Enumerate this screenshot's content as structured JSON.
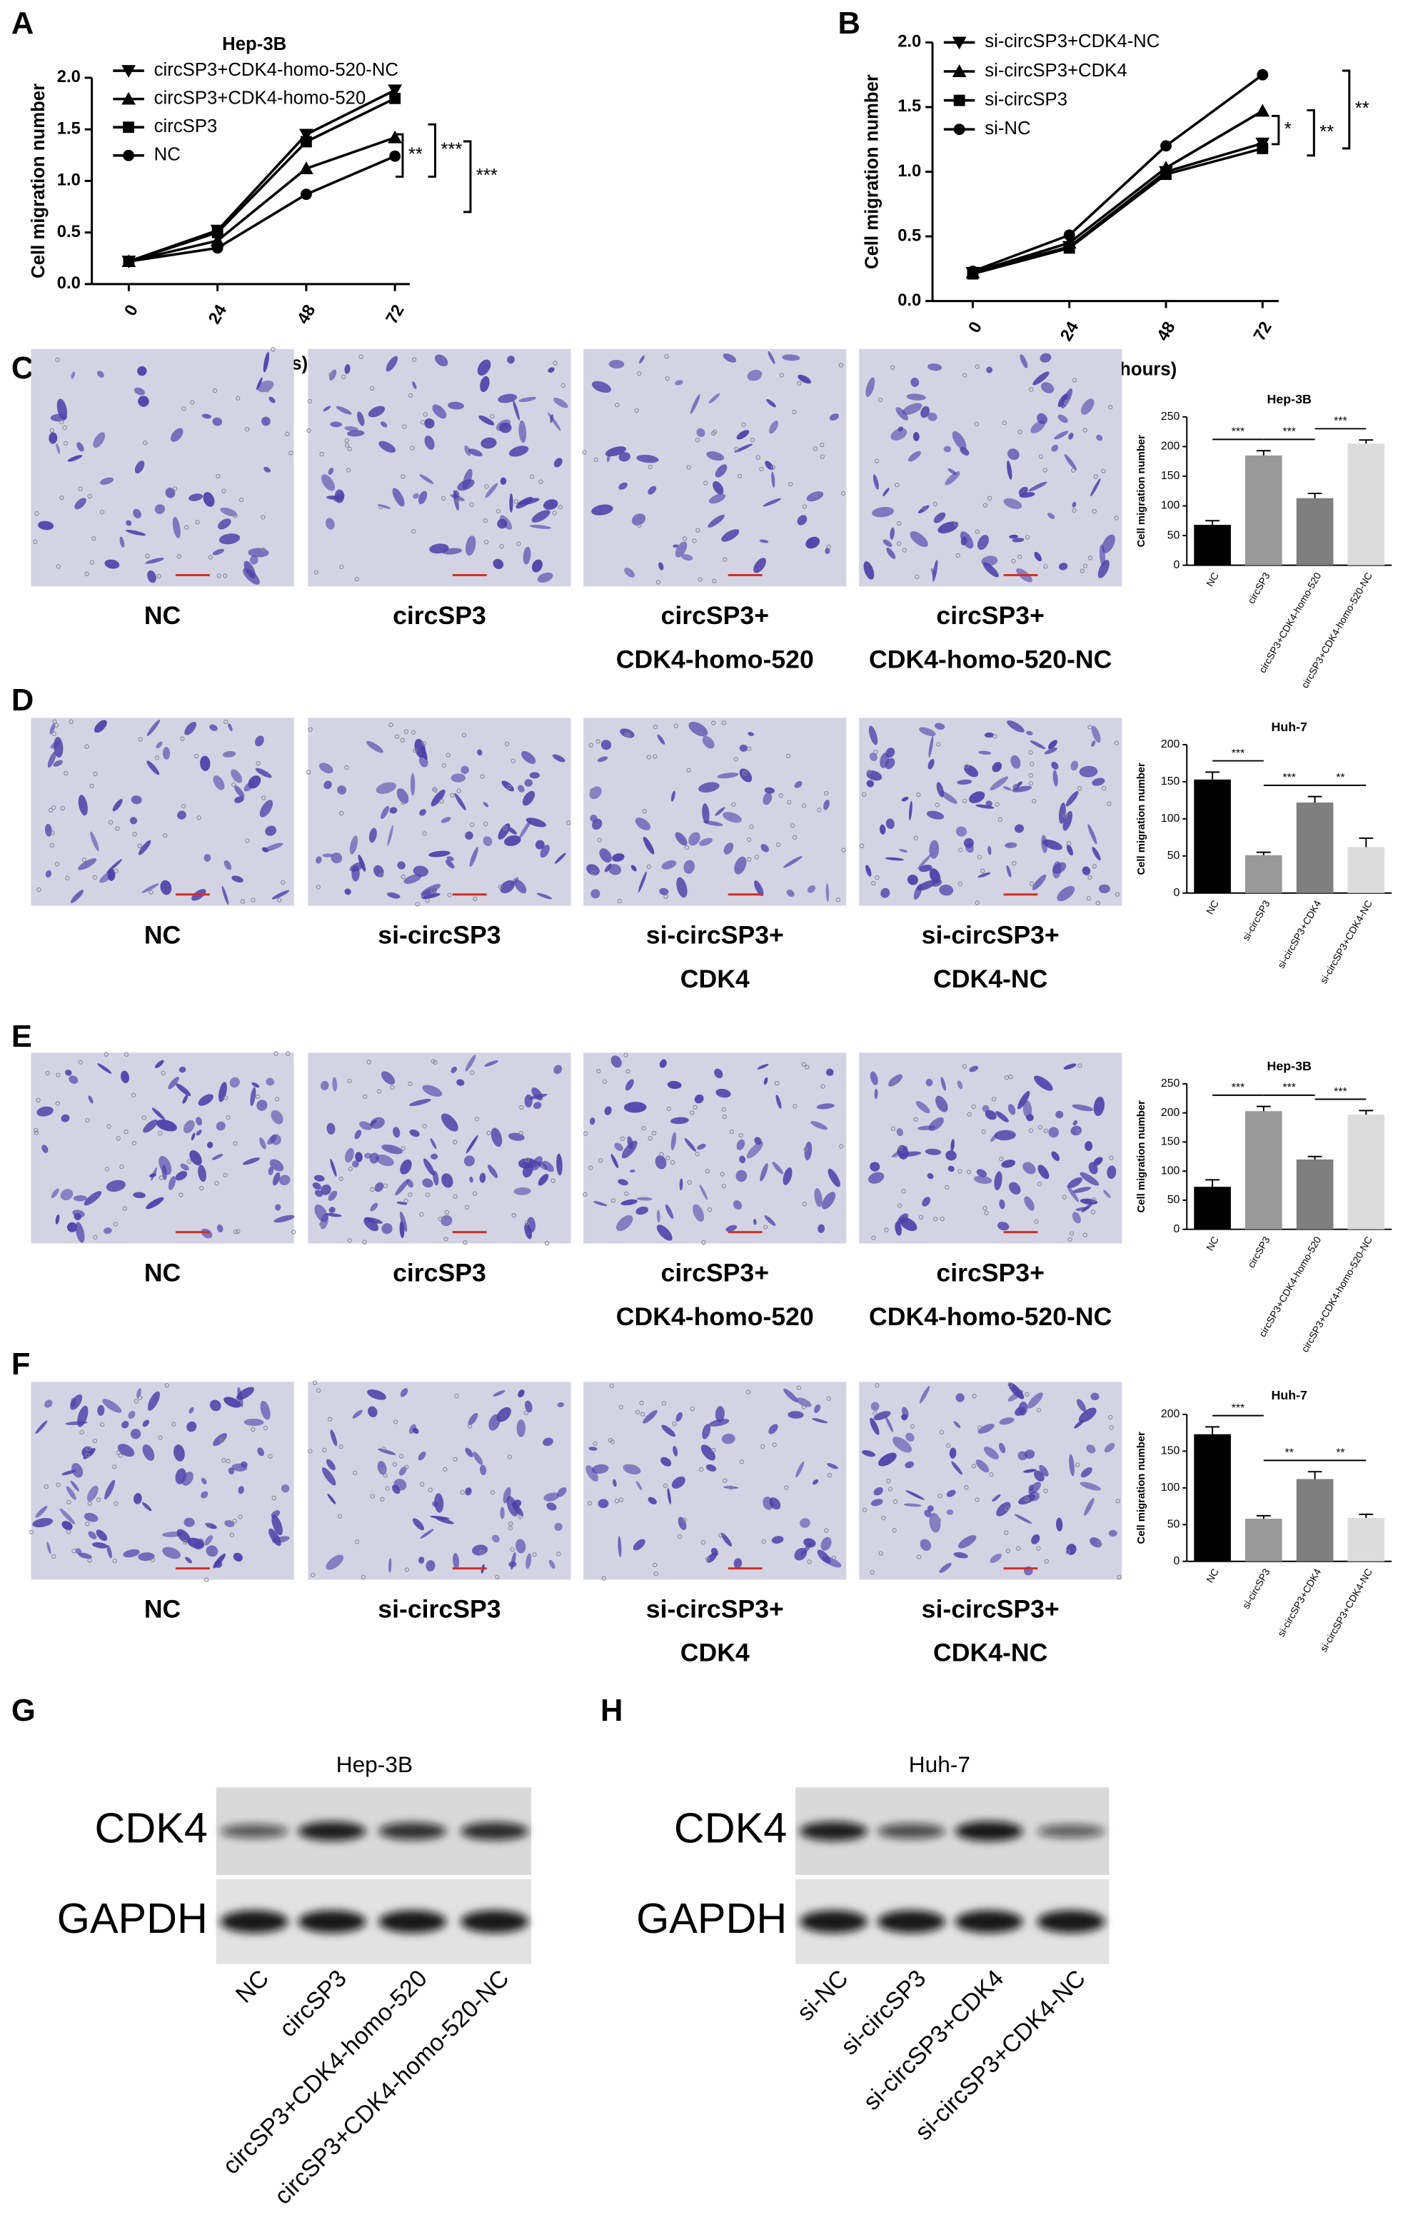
{
  "panel_letters": [
    "A",
    "B",
    "C",
    "D",
    "E",
    "F",
    "G",
    "H"
  ],
  "chart_data": [
    {
      "type": "line",
      "title": "Hep-3B",
      "x_label": "TIME(hours)",
      "y_label": "Cell migration number",
      "x": [
        0,
        24,
        48,
        72
      ],
      "xlim": [
        -10,
        76
      ],
      "xticks": [
        0,
        24,
        48,
        72
      ],
      "ylim": [
        0,
        2
      ],
      "yticks": [
        {
          "value": 0,
          "label": "0.0"
        },
        0.5,
        {
          "value": 1,
          "label": "1.0"
        },
        1.5,
        {
          "value": 2,
          "label": "2.0"
        }
      ],
      "series": [
        {
          "name": "circSP3+CDK4-homo-520-NC",
          "color": "#000000",
          "marker": "triangle-down",
          "values": [
            0.22,
            0.52,
            1.45,
            1.88
          ]
        },
        {
          "name": "circSP3+CDK4-homo-520",
          "color": "#000000",
          "marker": "triangle-up",
          "values": [
            0.22,
            0.42,
            1.12,
            1.42
          ]
        },
        {
          "name": "circSP3",
          "color": "#000000",
          "marker": "square",
          "values": [
            0.22,
            0.5,
            1.38,
            1.8
          ]
        },
        {
          "name": "NC",
          "color": "#000000",
          "marker": "circle",
          "values": [
            0.22,
            0.35,
            0.87,
            1.24
          ]
        }
      ],
      "annotations": [
        "**",
        "***",
        "***"
      ],
      "legend": "upper left"
    },
    {
      "type": "line",
      "x_label": "TIME(hours)",
      "y_label": "Cell migration number",
      "x": [
        0,
        24,
        48,
        72
      ],
      "xlim": [
        -10,
        76
      ],
      "xticks": [
        0,
        24,
        48,
        72
      ],
      "ylim": [
        0,
        2
      ],
      "yticks": [
        {
          "value": 0,
          "label": "0.0"
        },
        0.5,
        {
          "value": 1,
          "label": "1.0"
        },
        1.5,
        {
          "value": 2,
          "label": "2.0"
        }
      ],
      "series": [
        {
          "name": "si-circSP3+CDK4-NC",
          "color": "#000000",
          "marker": "triangle-down",
          "values": [
            0.22,
            0.42,
            1.0,
            1.22
          ]
        },
        {
          "name": "si-circSP3+CDK4",
          "color": "#000000",
          "marker": "triangle-up",
          "values": [
            0.22,
            0.45,
            1.03,
            1.47
          ]
        },
        {
          "name": "si-circSP3",
          "color": "#000000",
          "marker": "square",
          "values": [
            0.21,
            0.41,
            0.98,
            1.18
          ]
        },
        {
          "name": "si-NC",
          "color": "#000000",
          "marker": "circle",
          "values": [
            0.23,
            0.51,
            1.2,
            1.75
          ]
        }
      ],
      "annotations": [
        "*",
        "**",
        "**"
      ],
      "legend": "upper left"
    },
    {
      "type": "bar",
      "title": "Hep-3B",
      "y_label": "Cell migration number",
      "categories": [
        "NC",
        "circSP3",
        "circSP3+CDK4-homo-520",
        "circSP3+CDK4-homo-520-NC"
      ],
      "values": [
        68,
        185,
        113,
        205
      ],
      "errors": [
        7,
        8,
        8,
        6
      ],
      "colors": [
        "#000000",
        "#999999",
        "#7f7f7f",
        "#dcdcdc"
      ],
      "ylim": [
        0,
        250
      ],
      "yticks": [
        0,
        50,
        100,
        150,
        200,
        250
      ],
      "annotations": [
        "***",
        "***",
        "***"
      ]
    },
    {
      "type": "bar",
      "title": "Huh-7",
      "y_label": "Cell migration number",
      "categories": [
        "NC",
        "si-circSP3",
        "si-circSP3+CDK4",
        "si-circSP3+CDK4-NC"
      ],
      "values": [
        153,
        51,
        122,
        62
      ],
      "errors": [
        10,
        4,
        8,
        12
      ],
      "colors": [
        "#000000",
        "#999999",
        "#7f7f7f",
        "#dcdcdc"
      ],
      "ylim": [
        0,
        200
      ],
      "yticks": [
        0,
        50,
        100,
        150,
        200
      ],
      "annotations": [
        "***",
        "***",
        "**"
      ]
    },
    {
      "type": "bar",
      "title": "Hep-3B",
      "y_label": "Cell migration number",
      "categories": [
        "NC",
        "circSP3",
        "circSP3+CDK4-homo-520",
        "circSP3+CDK4-homo-520-NC"
      ],
      "values": [
        73,
        203,
        120,
        197
      ],
      "errors": [
        12,
        8,
        5,
        7
      ],
      "colors": [
        "#000000",
        "#999999",
        "#7f7f7f",
        "#dcdcdc"
      ],
      "ylim": [
        0,
        250
      ],
      "yticks": [
        0,
        50,
        100,
        150,
        200,
        250
      ],
      "annotations": [
        "***",
        "***",
        "***"
      ]
    },
    {
      "type": "bar",
      "title": "Huh-7",
      "y_label": "Cell migration number",
      "categories": [
        "NC",
        "si-circSP3",
        "si-circSP3+CDK4",
        "si-circSP3+CDK4-NC"
      ],
      "values": [
        173,
        58,
        112,
        59
      ],
      "errors": [
        10,
        4,
        10,
        5
      ],
      "colors": [
        "#000000",
        "#999999",
        "#7f7f7f",
        "#dcdcdc"
      ],
      "ylim": [
        0,
        200
      ],
      "yticks": [
        0,
        50,
        100,
        150,
        200
      ],
      "annotations": [
        "***",
        "**",
        "**"
      ]
    }
  ],
  "micrographs": [
    {
      "labels": [
        [
          "NC"
        ],
        [
          "circSP3"
        ],
        [
          "circSP3+",
          "CDK4-homo-520"
        ],
        [
          "circSP3+",
          "CDK4-homo-520-NC"
        ]
      ]
    },
    {
      "labels": [
        [
          "NC"
        ],
        [
          "si-circSP3"
        ],
        [
          "si-circSP3+",
          "CDK4"
        ],
        [
          "si-circSP3+",
          "CDK4-NC"
        ]
      ]
    },
    {
      "labels": [
        [
          "NC"
        ],
        [
          "circSP3"
        ],
        [
          "circSP3+",
          "CDK4-homo-520"
        ],
        [
          "circSP3+",
          "CDK4-homo-520-NC"
        ]
      ]
    },
    {
      "labels": [
        [
          "NC"
        ],
        [
          "si-circSP3"
        ],
        [
          "si-circSP3+",
          "CDK4"
        ],
        [
          "si-circSP3+",
          "CDK4-NC"
        ]
      ]
    }
  ],
  "blots": [
    {
      "title": "Hep-3B",
      "rows": [
        "CDK4",
        "GAPDH"
      ],
      "lanes": [
        "NC",
        "circSP3",
        "circSP3+CDK4-homo-520",
        "circSP3+CDK4-homo-520-NC"
      ]
    },
    {
      "title": "Huh-7",
      "rows": [
        "CDK4",
        "GAPDH"
      ],
      "lanes": [
        "si-NC",
        "si-circSP3",
        "si-circSP3+CDK4",
        "si-circSP3+CDK4-NC"
      ]
    }
  ]
}
